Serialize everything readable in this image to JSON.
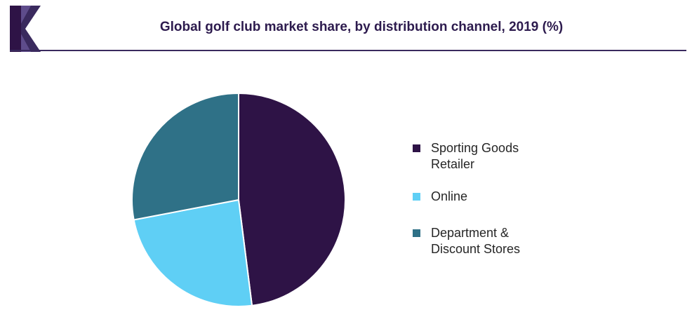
{
  "header": {
    "title": "Global golf club market share, by distribution channel, 2019 (%)"
  },
  "colors": {
    "header_rule": "#3a2a5e",
    "logo_dark": "#3a2a5e",
    "logo_light": "#7b68b0"
  },
  "chart_data": {
    "type": "pie",
    "title": "Global golf club market share, by distribution channel, 2019 (%)",
    "start_angle_deg": 0,
    "direction": "clockwise",
    "legend_position": "right",
    "slices": [
      {
        "label": "Sporting Goods\nRetailer",
        "value": 48,
        "color": "#2e1346"
      },
      {
        "label": "Online",
        "value": 24,
        "color": "#5fcff5"
      },
      {
        "label": "Department &\nDiscount Stores",
        "value": 28,
        "color": "#2f7187"
      }
    ]
  }
}
